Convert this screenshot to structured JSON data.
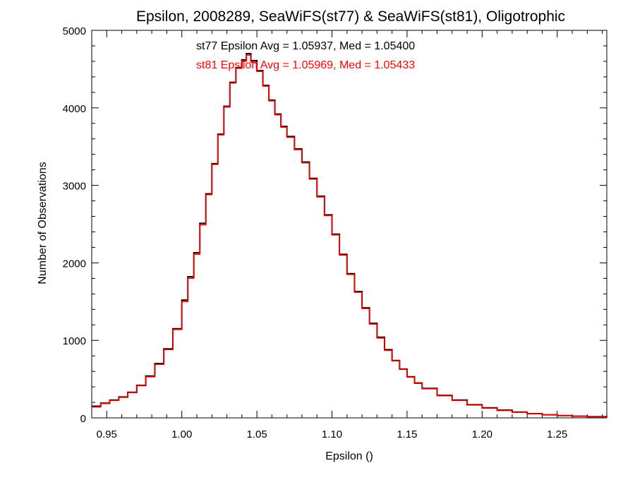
{
  "chart_data": {
    "type": "line",
    "step": true,
    "title": "Epsilon, 2008289, SeaWiFS(st77) & SeaWiFS(st81), Oligotrophic",
    "xlabel": "Epsilon ()",
    "ylabel": "Number of Observations",
    "xlim": [
      0.94,
      1.283
    ],
    "ylim": [
      0,
      5000
    ],
    "xticks": [
      0.95,
      1.0,
      1.05,
      1.1,
      1.15,
      1.2,
      1.25
    ],
    "xtick_labels": [
      "0.95",
      "1.00",
      "1.05",
      "1.10",
      "1.15",
      "1.20",
      "1.25"
    ],
    "yticks": [
      0,
      1000,
      2000,
      3000,
      4000,
      5000
    ],
    "ytick_labels": [
      "0",
      "1000",
      "2000",
      "3000",
      "4000",
      "5000"
    ],
    "grid": false,
    "annotations": [
      {
        "text": "st77 Epsilon Avg = 1.05937, Med = 1.05400",
        "color": "#000000"
      },
      {
        "text": "st81 Epsilon Avg = 1.05969, Med = 1.05433",
        "color": "#ff0000"
      }
    ],
    "series": [
      {
        "color": "#000000",
        "x": [
          0.94,
          0.946,
          0.952,
          0.958,
          0.964,
          0.97,
          0.976,
          0.982,
          0.988,
          0.994,
          1.0,
          1.004,
          1.008,
          1.012,
          1.016,
          1.02,
          1.024,
          1.028,
          1.032,
          1.036,
          1.04,
          1.043,
          1.046,
          1.05,
          1.054,
          1.058,
          1.062,
          1.066,
          1.07,
          1.075,
          1.08,
          1.085,
          1.09,
          1.095,
          1.1,
          1.105,
          1.11,
          1.115,
          1.12,
          1.125,
          1.13,
          1.135,
          1.14,
          1.145,
          1.15,
          1.155,
          1.16,
          1.17,
          1.18,
          1.19,
          1.2,
          1.21,
          1.22,
          1.23,
          1.24,
          1.25,
          1.26,
          1.27,
          1.283
        ],
        "y": [
          150,
          190,
          230,
          270,
          330,
          420,
          540,
          700,
          890,
          1150,
          1520,
          1820,
          2130,
          2510,
          2890,
          3280,
          3660,
          4020,
          4330,
          4520,
          4620,
          4700,
          4610,
          4480,
          4290,
          4100,
          3920,
          3760,
          3630,
          3470,
          3300,
          3090,
          2860,
          2620,
          2370,
          2110,
          1860,
          1630,
          1420,
          1220,
          1040,
          880,
          740,
          630,
          530,
          450,
          380,
          290,
          230,
          170,
          130,
          100,
          75,
          55,
          40,
          30,
          22,
          16,
          10
        ]
      },
      {
        "color": "#ff0000",
        "x": [
          0.94,
          0.946,
          0.952,
          0.958,
          0.964,
          0.97,
          0.976,
          0.982,
          0.988,
          0.994,
          1.0,
          1.004,
          1.008,
          1.012,
          1.016,
          1.02,
          1.024,
          1.028,
          1.032,
          1.036,
          1.04,
          1.043,
          1.046,
          1.05,
          1.054,
          1.058,
          1.062,
          1.066,
          1.07,
          1.075,
          1.08,
          1.085,
          1.09,
          1.095,
          1.1,
          1.105,
          1.11,
          1.115,
          1.12,
          1.125,
          1.13,
          1.135,
          1.14,
          1.145,
          1.15,
          1.155,
          1.16,
          1.17,
          1.18,
          1.19,
          1.2,
          1.21,
          1.22,
          1.23,
          1.24,
          1.25,
          1.26,
          1.27,
          1.283
        ],
        "y": [
          140,
          185,
          225,
          265,
          325,
          415,
          530,
          690,
          880,
          1140,
          1500,
          1800,
          2110,
          2490,
          2880,
          3270,
          3650,
          4010,
          4320,
          4510,
          4600,
          4680,
          4590,
          4470,
          4280,
          4090,
          3910,
          3750,
          3620,
          3460,
          3290,
          3080,
          2850,
          2610,
          2360,
          2100,
          1850,
          1620,
          1410,
          1210,
          1030,
          870,
          735,
          625,
          525,
          445,
          375,
          285,
          225,
          165,
          125,
          95,
          72,
          52,
          38,
          28,
          20,
          14,
          8
        ]
      }
    ]
  }
}
